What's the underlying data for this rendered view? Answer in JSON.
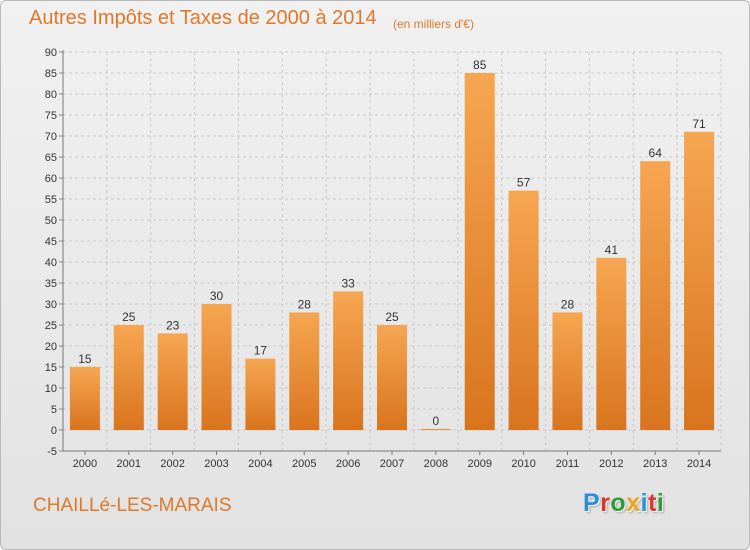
{
  "title": "Autres Impôts et Taxes de 2000 à 2014",
  "subtitle": "(en milliers d'€)",
  "place": "CHAILLé-LES-MARAIS",
  "logo": {
    "letters": [
      "P",
      "r",
      "o",
      "x",
      "i",
      "t",
      "i"
    ],
    "colors": [
      "#2a8fd6",
      "#d9342b",
      "#2c9b3a",
      "#f0a21c",
      "#2a8fd6",
      "#d9342b",
      "#2c9b3a"
    ]
  },
  "chart_data": {
    "type": "bar",
    "categories": [
      "2000",
      "2001",
      "2002",
      "2003",
      "2004",
      "2005",
      "2006",
      "2007",
      "2008",
      "2009",
      "2010",
      "2011",
      "2012",
      "2013",
      "2014"
    ],
    "values": [
      15,
      25,
      23,
      30,
      17,
      28,
      33,
      25,
      0,
      85,
      57,
      28,
      41,
      64,
      71
    ],
    "ylim": [
      -5,
      90
    ],
    "yticks": [
      -5,
      0,
      5,
      10,
      15,
      20,
      25,
      30,
      35,
      40,
      45,
      50,
      55,
      60,
      65,
      70,
      75,
      80,
      85,
      90
    ],
    "grid": true,
    "bar_color": "#f08b2c"
  }
}
